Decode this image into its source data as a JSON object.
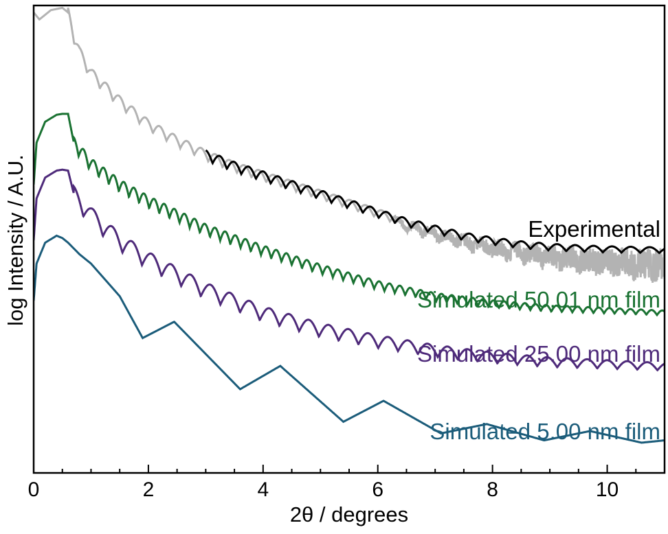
{
  "chart_data": {
    "type": "line",
    "title": "",
    "xlabel": "2θ / degrees",
    "ylabel": "log Intensity / A.U.",
    "xlim": [
      0,
      11
    ],
    "xticks": [
      0,
      2,
      4,
      6,
      8,
      10
    ],
    "yticks_shown": false,
    "grid": false,
    "legend": "inline labels at right",
    "series": [
      {
        "name": "Experimental",
        "color": "#000000",
        "raw_color": "#b3b3b3",
        "x": [
          0.0,
          0.1,
          0.3,
          0.5,
          0.6,
          0.7,
          0.8,
          1.0,
          1.5,
          2.0,
          2.5,
          3.0,
          3.5,
          4.0,
          4.5,
          5.0,
          5.5,
          6.0,
          6.5,
          7.0,
          7.5,
          8.0,
          8.5,
          9.0,
          9.5,
          10.0,
          10.5,
          11.0
        ],
        "y": [
          9.9,
          9.75,
          9.95,
          10.0,
          9.9,
          9.4,
          9.05,
          8.6,
          8.0,
          7.5,
          7.15,
          6.85,
          6.6,
          6.4,
          6.2,
          6.0,
          5.8,
          5.6,
          5.4,
          5.25,
          5.1,
          5.0,
          4.92,
          4.87,
          4.84,
          4.82,
          4.81,
          4.8
        ]
      },
      {
        "name": "Simulated 50.01 nm film",
        "color": "#1a7232",
        "x": [
          0.0,
          0.05,
          0.2,
          0.4,
          0.5,
          0.6,
          0.7,
          1.0,
          1.5,
          2.0,
          3.0,
          4.0,
          5.0,
          6.0,
          7.0,
          8.0,
          9.0,
          10.0,
          11.0
        ],
        "y": [
          6.2,
          7.1,
          7.55,
          7.7,
          7.72,
          7.72,
          7.1,
          6.65,
          6.2,
          5.85,
          5.25,
          4.8,
          4.4,
          4.05,
          3.8,
          3.65,
          3.55,
          3.5,
          3.45
        ]
      },
      {
        "name": "Simulated 25.00 nm film",
        "color": "#4e2a7a",
        "x": [
          0.0,
          0.05,
          0.2,
          0.4,
          0.5,
          0.6,
          0.7,
          1.0,
          1.5,
          2.0,
          3.0,
          4.0,
          5.0,
          6.0,
          7.0,
          8.0,
          9.0,
          10.0,
          11.0
        ],
        "y": [
          5.0,
          5.9,
          6.35,
          6.5,
          6.52,
          6.5,
          6.0,
          5.55,
          5.0,
          4.6,
          3.95,
          3.45,
          3.1,
          2.85,
          2.65,
          2.5,
          2.4,
          2.35,
          2.3
        ]
      },
      {
        "name": "Simulated 5.00 nm film",
        "color": "#1b5c7a",
        "x": [
          0.0,
          0.05,
          0.2,
          0.4,
          0.5,
          0.6,
          0.8,
          1.0,
          1.5,
          1.9,
          2.45,
          3.6,
          4.3,
          5.4,
          6.1,
          7.1,
          7.9,
          8.9,
          9.7,
          10.6,
          11.0
        ],
        "y": [
          3.7,
          4.5,
          4.95,
          5.1,
          5.05,
          4.95,
          4.7,
          4.5,
          3.8,
          2.9,
          3.25,
          1.8,
          2.3,
          1.1,
          1.55,
          0.85,
          1.05,
          0.7,
          0.9,
          0.65,
          0.7
        ]
      }
    ]
  }
}
